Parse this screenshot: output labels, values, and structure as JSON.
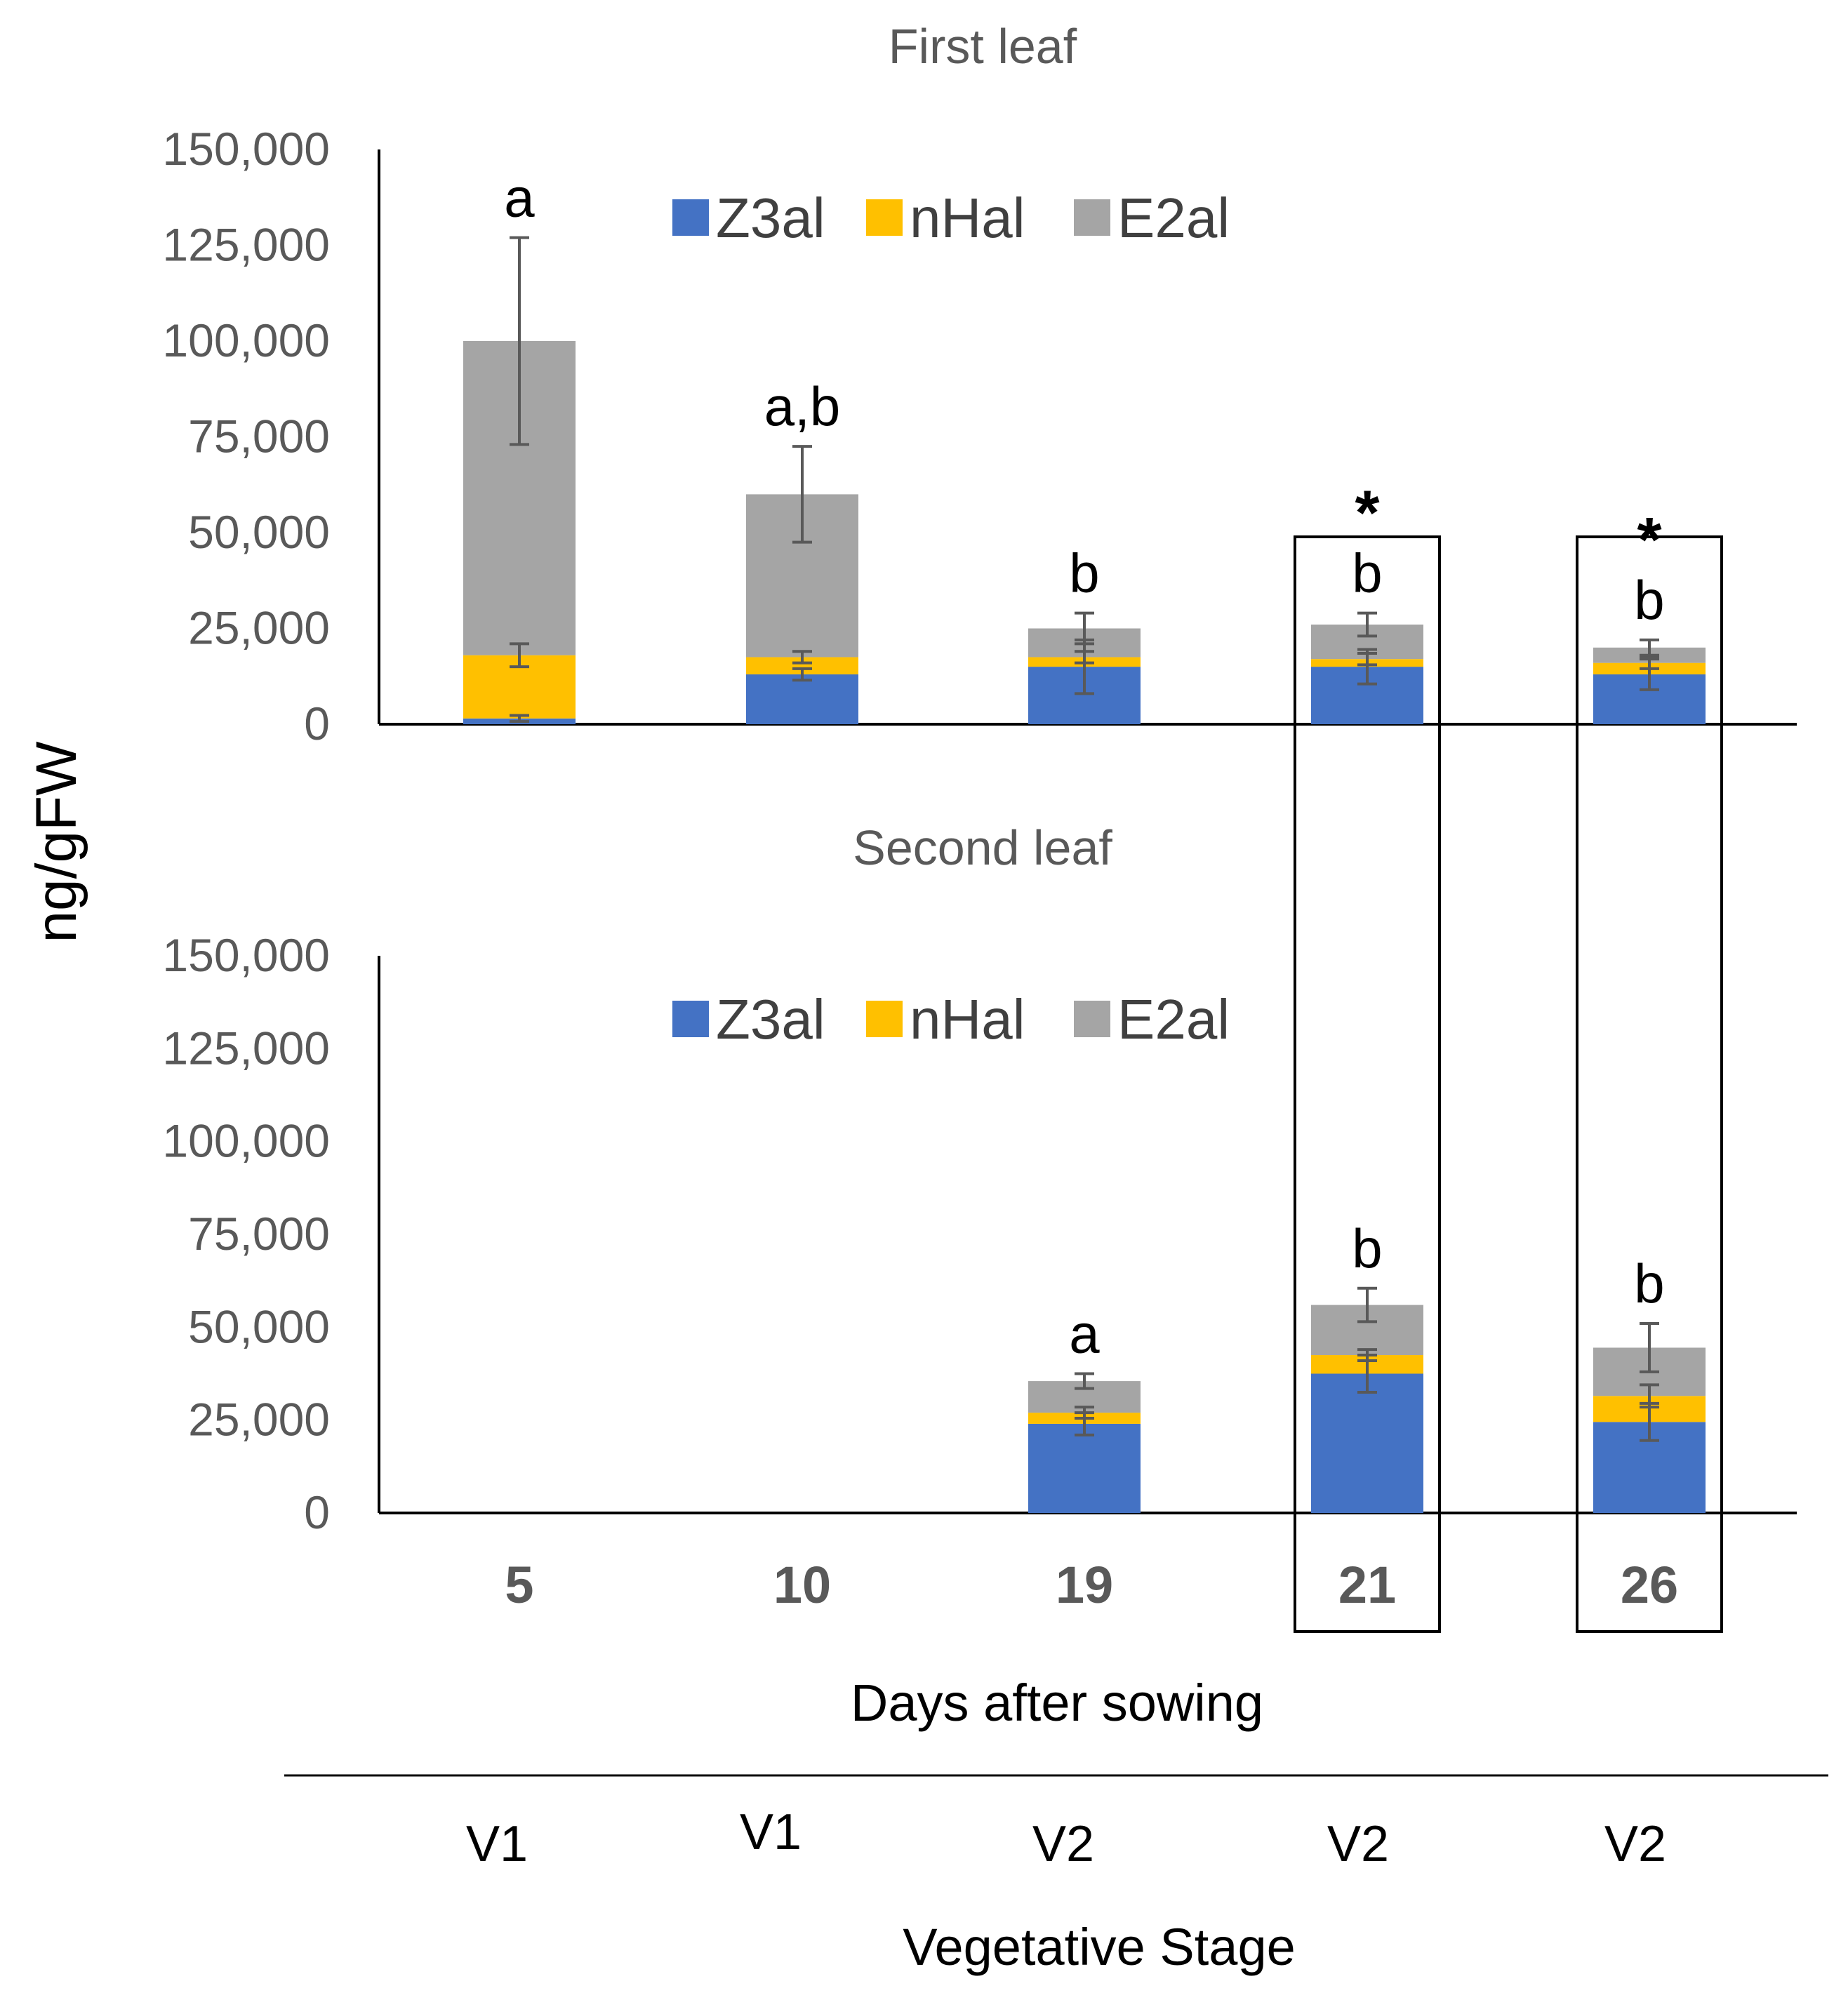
{
  "chart_data": {
    "type": "bar",
    "stacked": true,
    "ylabel": "ng/gFW",
    "xlabel": "Days after sowing",
    "secondary_xlabel": "Vegetative Stage",
    "categories": [
      "5",
      "10",
      "19",
      "21",
      "26"
    ],
    "stages": [
      "V1",
      "V1",
      "V2",
      "V2",
      "V2"
    ],
    "highlighted_categories": [
      "21",
      "26"
    ],
    "ylim": [
      0,
      150000
    ],
    "yticks": [
      0,
      25000,
      50000,
      75000,
      100000,
      125000,
      150000
    ],
    "ytick_labels": [
      "0",
      "25,000",
      "50,000",
      "75,000",
      "100,000",
      "125,000",
      "150,000"
    ],
    "legend": [
      "Z3al",
      "nHal",
      "E2al"
    ],
    "colors": {
      "Z3al": "#4472C4",
      "nHal": "#FFC000",
      "E2al": "#A5A5A5",
      "error": "#595959",
      "axis": "#000000"
    },
    "panels": [
      {
        "title": "First leaf",
        "series": [
          {
            "name": "Z3al",
            "values": [
              1500,
              13000,
              15000,
              15000,
              13000
            ],
            "errors": [
              800,
              1500,
              7000,
              4500,
              4000
            ]
          },
          {
            "name": "nHal",
            "values": [
              16500,
              4500,
              2500,
              2000,
              3000
            ],
            "errors": [
              3000,
              1500,
              1500,
              1500,
              1500
            ]
          },
          {
            "name": "E2al",
            "values": [
              82000,
              42500,
              7500,
              9000,
              4000
            ],
            "errors": [
              27000,
              12500,
              4000,
              3000,
              2000
            ]
          }
        ],
        "significance": [
          "a",
          "a,b",
          "b",
          "b",
          "b"
        ],
        "asterisks": [
          "",
          "",
          "",
          "*",
          "*"
        ]
      },
      {
        "title": "Second leaf",
        "series": [
          {
            "name": "Z3al",
            "values": [
              null,
              null,
              24000,
              37500,
              24500
            ],
            "errors": [
              0,
              0,
              3000,
              5000,
              5000
            ]
          },
          {
            "name": "nHal",
            "values": [
              null,
              null,
              3000,
              5000,
              7000
            ],
            "errors": [
              0,
              0,
              1500,
              1500,
              3000
            ]
          },
          {
            "name": "E2al",
            "values": [
              null,
              null,
              8500,
              13500,
              13000
            ],
            "errors": [
              0,
              0,
              2000,
              4500,
              6500
            ]
          }
        ],
        "significance": [
          "",
          "",
          "a",
          "b",
          "b"
        ],
        "asterisks": [
          "",
          "",
          "",
          "",
          ""
        ]
      }
    ]
  }
}
